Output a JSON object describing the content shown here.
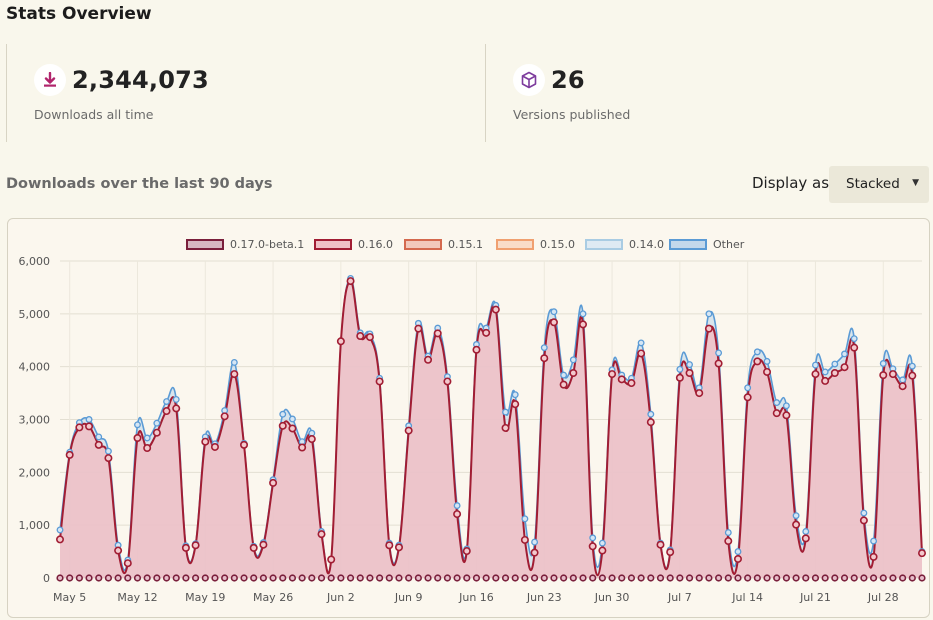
{
  "page": {
    "title": "Stats Overview"
  },
  "stats": [
    {
      "icon": "download-icon",
      "value": "2,344,073",
      "label": "Downloads all time"
    },
    {
      "icon": "package-icon",
      "value": "26",
      "label": "Versions published"
    }
  ],
  "chart_section": {
    "heading": "Downloads over the last 90 days",
    "display_label": "Display as",
    "display_value": "Stacked"
  },
  "colors": {
    "accent": "#b1246c",
    "purple": "#7d3c9d",
    "series_line": "#a11d33",
    "series_fill": "#e8b7ba",
    "other_line": "#5b9bd5"
  },
  "chart_data": {
    "type": "area",
    "stacked": true,
    "grid": true,
    "legend_position": "top",
    "ylim": [
      0,
      6000
    ],
    "y_ticks": [
      0,
      1000,
      2000,
      3000,
      4000,
      5000,
      6000
    ],
    "y_tick_labels": [
      "0",
      "1,000",
      "2,000",
      "3,000",
      "4,000",
      "5,000",
      "6,000"
    ],
    "x_start": "May 4",
    "x_tick_labels": [
      "May 5",
      "May 12",
      "May 19",
      "May 26",
      "Jun 2",
      "Jun 9",
      "Jun 16",
      "Jun 23",
      "Jun 30",
      "Jul 7",
      "Jul 14",
      "Jul 21",
      "Jul 28"
    ],
    "series": [
      {
        "name": "0.17.0-beta.1",
        "color": "#7a1f3b",
        "fill": "#d7b8c2",
        "values": []
      },
      {
        "name": "0.16.0",
        "color": "#a11d33",
        "fill": "#f0c0c6",
        "values": [
          730,
          2330,
          2850,
          2870,
          2520,
          2270,
          520,
          280,
          2650,
          2460,
          2750,
          3160,
          3210,
          570,
          620,
          2580,
          2480,
          3060,
          3860,
          2520,
          570,
          630,
          1800,
          2880,
          2830,
          2470,
          2630,
          830,
          350,
          4480,
          5620,
          4580,
          4560,
          3720,
          620,
          580,
          2790,
          4720,
          4130,
          4630,
          3720,
          1210,
          510,
          4320,
          4640,
          5080,
          2840,
          3290,
          720,
          480,
          4160,
          4840,
          3660,
          3880,
          4800,
          600,
          520,
          3860,
          3760,
          3690,
          4250,
          2950,
          630,
          490,
          3790,
          3880,
          3500,
          4720,
          4060,
          700,
          360,
          3420,
          4100,
          3900,
          3120,
          3080,
          1010,
          750,
          3860,
          3730,
          3880,
          3990,
          4360,
          1090,
          400,
          3840,
          3860,
          3630,
          3830,
          470
        ]
      },
      {
        "name": "0.15.1",
        "color": "#d4694e",
        "fill": "#f2c8bb",
        "values": []
      },
      {
        "name": "0.15.0",
        "color": "#f0a070",
        "fill": "#f9dcc8",
        "values": []
      },
      {
        "name": "0.14.0",
        "color": "#a9cce3",
        "fill": "#deeaf3",
        "values": []
      },
      {
        "name": "Other",
        "color": "#5b9bd5",
        "fill": "#c3d8eb",
        "values": [
          180,
          50,
          90,
          130,
          150,
          130,
          100,
          60,
          250,
          190,
          180,
          180,
          170,
          40,
          30,
          90,
          60,
          110,
          220,
          30,
          30,
          40,
          60,
          220,
          180,
          110,
          110,
          50,
          0,
          0,
          50,
          60,
          60,
          60,
          40,
          40,
          90,
          100,
          70,
          100,
          90,
          160,
          40,
          100,
          90,
          80,
          300,
          180,
          400,
          200,
          200,
          200,
          180,
          250,
          200,
          160,
          140,
          80,
          80,
          90,
          200,
          150,
          30,
          40,
          160,
          160,
          100,
          280,
          200,
          160,
          140,
          180,
          180,
          200,
          200,
          180,
          170,
          130,
          170,
          170,
          170,
          250,
          170,
          140,
          300,
          220,
          100,
          120,
          180,
          30
        ]
      }
    ]
  }
}
